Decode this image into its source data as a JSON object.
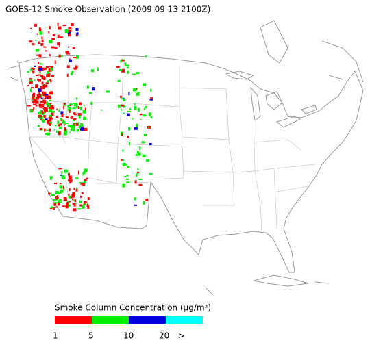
{
  "header": {
    "title": "GOES-12 Smoke Observation (2009 09 13  2100Z)"
  },
  "legend": {
    "title": "Smoke Column Concentration (μg/m³)",
    "colors": [
      "#ff0000",
      "#00ee00",
      "#0000dd",
      "#00ffff"
    ],
    "labels": [
      "1",
      "5",
      "10",
      "20",
      ">"
    ]
  }
}
